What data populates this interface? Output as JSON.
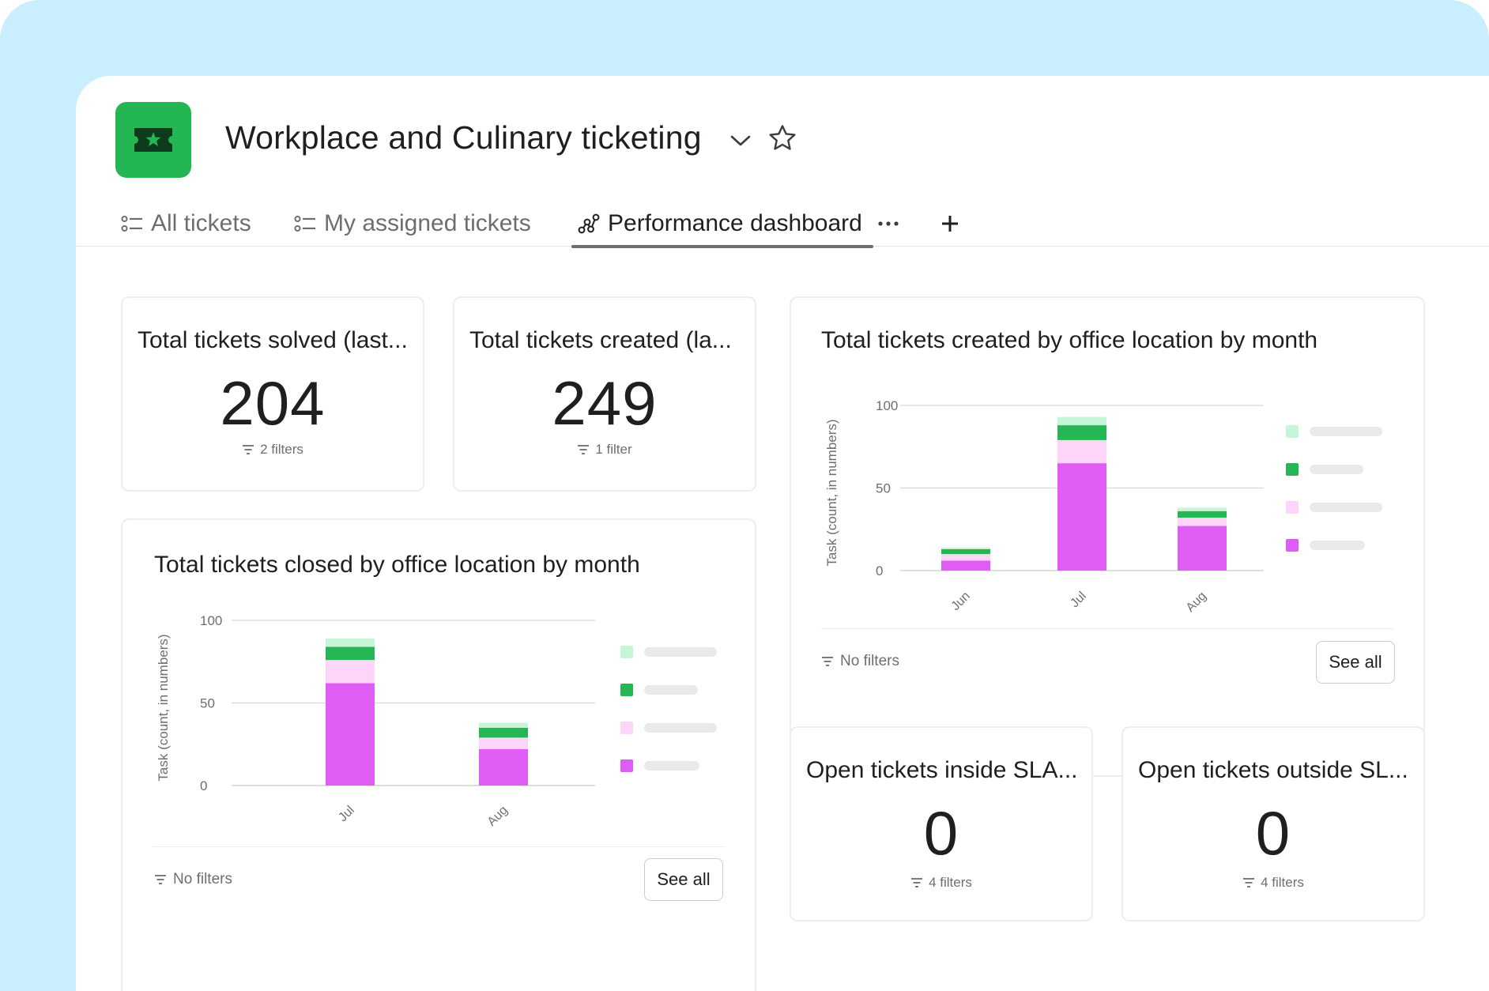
{
  "project": {
    "title": "Workplace and Culinary ticketing",
    "icon": "ticket-star-icon",
    "icon_color": "#25b654"
  },
  "tabs": [
    {
      "label": "All tickets",
      "icon": "list-icon"
    },
    {
      "label": "My assigned tickets",
      "icon": "list-icon"
    },
    {
      "label": "Performance dashboard",
      "icon": "dashboard-nodes-icon",
      "active": true
    }
  ],
  "colors": {
    "background_frame": "#c9efff",
    "series_light_green": "#c7f5d7",
    "series_green": "#27b656",
    "series_light_pink": "#fcd5f8",
    "series_magenta": "#df5cf5"
  },
  "cards": {
    "solved": {
      "title": "Total tickets solved (last...",
      "value": "204",
      "filters": "2 filters"
    },
    "created": {
      "title": "Total tickets created (la...",
      "value": "249",
      "filters": "1 filter"
    },
    "inside_sla": {
      "title": "Open tickets inside SLA...",
      "value": "0",
      "filters": "4 filters"
    },
    "outside_sla": {
      "title": "Open tickets outside SL...",
      "value": "0",
      "filters": "4 filters"
    }
  },
  "chart_footer": {
    "no_filters": "No filters",
    "see_all": "See all"
  },
  "chart_data": [
    {
      "id": "created_by_location",
      "type": "bar",
      "stacked": true,
      "title": "Total tickets created by office location by month",
      "xlabel": "",
      "ylabel": "Task (count, in numbers)",
      "ylim": [
        0,
        100
      ],
      "yticks": [
        0,
        50,
        100
      ],
      "categories": [
        "Jun",
        "Jul",
        "Aug"
      ],
      "series": [
        {
          "color": "#df5cf5",
          "values": [
            6,
            65,
            27
          ]
        },
        {
          "color": "#fcd5f8",
          "values": [
            4,
            14,
            5
          ]
        },
        {
          "color": "#27b656",
          "values": [
            3,
            9,
            4
          ]
        },
        {
          "color": "#c7f5d7",
          "values": [
            1,
            5,
            2
          ]
        }
      ],
      "legend_position": "right",
      "grid": true
    },
    {
      "id": "closed_by_location",
      "type": "bar",
      "stacked": true,
      "title": "Total tickets closed by office location by month",
      "xlabel": "",
      "ylabel": "Task (count, in numbers)",
      "ylim": [
        0,
        100
      ],
      "yticks": [
        0,
        50,
        100
      ],
      "categories": [
        "Jul",
        "Aug"
      ],
      "series": [
        {
          "color": "#df5cf5",
          "values": [
            62,
            22
          ]
        },
        {
          "color": "#fcd5f8",
          "values": [
            14,
            7
          ]
        },
        {
          "color": "#27b656",
          "values": [
            8,
            6
          ]
        },
        {
          "color": "#c7f5d7",
          "values": [
            5,
            3
          ]
        }
      ],
      "legend_position": "right",
      "grid": true
    }
  ]
}
